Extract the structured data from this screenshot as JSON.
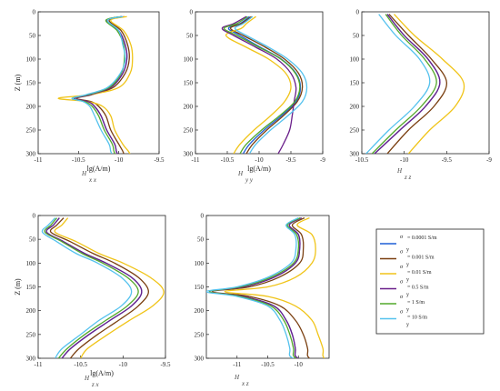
{
  "colors": {
    "s0001": "#1f5fd6",
    "s001": "#7a3f10",
    "s01": "#f0c418",
    "s05": "#6a1f8a",
    "s1": "#52a82a",
    "s10": "#55c2ee"
  },
  "legend": {
    "entries": [
      {
        "sym": "σ",
        "sub": "y",
        "text": "= 0.0001 S/m",
        "color": "#1f5fd6"
      },
      {
        "sym": "σ",
        "sub": "y",
        "text": "= 0.001 S/m",
        "color": "#7a3f10"
      },
      {
        "sym": "σ",
        "sub": "y",
        "text": "= 0.01 S/m",
        "color": "#f0c418"
      },
      {
        "sym": "σ",
        "sub": "y",
        "text": "= 0.5 S/m",
        "color": "#6a1f8a"
      },
      {
        "sym": "σ",
        "sub": "y",
        "text": "= 1 S/m",
        "color": "#52a82a"
      },
      {
        "sym": "σ",
        "sub": "y",
        "text": "= 10 S/m",
        "color": "#55c2ee"
      }
    ]
  },
  "chart_data": [
    {
      "type": "line",
      "component": "H",
      "component_sub": "x x",
      "xlabel": "lg(A/m)",
      "ylabel": "Z (m)",
      "xlim": [
        -11,
        -9.5
      ],
      "ylim": [
        0,
        300
      ],
      "xticks": [
        "-11",
        "-10.5",
        "-10",
        "-9.5"
      ],
      "yticks": [
        "0",
        "50",
        "100",
        "150",
        "200",
        "250",
        "300"
      ],
      "z": [
        10,
        18,
        40,
        70,
        100,
        130,
        160,
        175,
        183,
        190,
        200,
        220,
        250,
        280,
        295,
        305
      ],
      "series": [
        {
          "color": "#1f5fd6",
          "values": [
            -9.96,
            -10.15,
            -10.0,
            -9.92,
            -9.9,
            -9.95,
            -10.1,
            -10.35,
            -10.55,
            -10.38,
            -10.3,
            -10.22,
            -10.15,
            -10.05,
            -10.03,
            -10.0
          ]
        },
        {
          "color": "#7a3f10",
          "values": [
            -9.93,
            -10.12,
            -9.97,
            -9.89,
            -9.87,
            -9.92,
            -10.07,
            -10.33,
            -10.52,
            -10.34,
            -10.25,
            -10.16,
            -10.1,
            -10.0,
            -9.95,
            -9.93
          ]
        },
        {
          "color": "#f0c418",
          "values": [
            -9.9,
            -10.1,
            -9.94,
            -9.85,
            -9.83,
            -9.86,
            -10.0,
            -10.35,
            -10.75,
            -10.38,
            -10.2,
            -10.1,
            -10.05,
            -9.95,
            -9.88,
            -9.85
          ]
        },
        {
          "color": "#6a1f8a",
          "values": [
            -9.96,
            -10.15,
            -10.0,
            -9.92,
            -9.9,
            -9.95,
            -10.1,
            -10.35,
            -10.55,
            -10.38,
            -10.3,
            -10.22,
            -10.15,
            -10.05,
            -10.03,
            -10.0
          ]
        },
        {
          "color": "#52a82a",
          "values": [
            -9.97,
            -10.16,
            -10.02,
            -9.94,
            -9.93,
            -9.97,
            -10.12,
            -10.38,
            -10.58,
            -10.42,
            -10.33,
            -10.25,
            -10.18,
            -10.08,
            -10.06,
            -10.03
          ]
        },
        {
          "color": "#55c2ee",
          "values": [
            -9.95,
            -10.14,
            -10.0,
            -9.95,
            -9.92,
            -9.98,
            -10.14,
            -10.4,
            -10.58,
            -10.44,
            -10.36,
            -10.3,
            -10.22,
            -10.12,
            -10.1,
            -10.07
          ]
        }
      ]
    },
    {
      "type": "line",
      "component": "H",
      "component_sub": "y y",
      "xlabel": "lg(A/m)",
      "ylabel": "",
      "xlim": [
        -11,
        -9
      ],
      "ylim": [
        0,
        300
      ],
      "xticks": [
        "-11",
        "-10.5",
        "-10",
        "-9.5",
        "-9"
      ],
      "yticks": [
        "0",
        "50",
        "100",
        "150",
        "200",
        "250",
        "300"
      ],
      "z": [
        10,
        25,
        35,
        50,
        75,
        100,
        130,
        160,
        190,
        220,
        250,
        280,
        300
      ],
      "series": [
        {
          "color": "#1f5fd6",
          "values": [
            -10.15,
            -10.3,
            -10.48,
            -10.3,
            -9.98,
            -9.65,
            -9.42,
            -9.35,
            -9.42,
            -9.65,
            -9.92,
            -10.15,
            -10.25
          ]
        },
        {
          "color": "#7a3f10",
          "values": [
            -10.12,
            -10.28,
            -10.45,
            -10.25,
            -9.9,
            -9.6,
            -9.38,
            -9.32,
            -9.4,
            -9.62,
            -9.88,
            -10.1,
            -10.2
          ]
        },
        {
          "color": "#f0c418",
          "values": [
            -10.05,
            -10.2,
            -10.28,
            -10.52,
            -10.2,
            -9.85,
            -9.58,
            -9.5,
            -9.6,
            -9.82,
            -10.08,
            -10.3,
            -10.4
          ]
        },
        {
          "color": "#6a1f8a",
          "values": [
            -10.2,
            -10.4,
            -10.58,
            -10.4,
            -10.05,
            -9.72,
            -9.5,
            -9.42,
            -9.45,
            -9.48,
            -9.52,
            -9.62,
            -9.7
          ]
        },
        {
          "color": "#52a82a",
          "values": [
            -10.18,
            -10.35,
            -10.55,
            -10.35,
            -10.0,
            -9.66,
            -9.43,
            -9.36,
            -9.44,
            -9.68,
            -9.96,
            -10.2,
            -10.3
          ]
        },
        {
          "color": "#55c2ee",
          "values": [
            -10.1,
            -10.25,
            -10.38,
            -10.2,
            -9.85,
            -9.55,
            -9.32,
            -9.25,
            -9.32,
            -9.55,
            -9.82,
            -10.05,
            -10.15
          ]
        }
      ]
    },
    {
      "type": "line",
      "component": "H",
      "component_sub": "z z",
      "xlabel": "",
      "ylabel": "",
      "xlim": [
        -10.5,
        -9
      ],
      "ylim": [
        0,
        300
      ],
      "xticks": [
        "-10.5",
        "-10",
        "-9.5",
        "-9"
      ],
      "yticks": [
        "0",
        "50",
        "100",
        "150",
        "200",
        "250",
        "300"
      ],
      "z": [
        5,
        50,
        100,
        150,
        200,
        250,
        300
      ],
      "series": [
        {
          "color": "#1f5fd6",
          "values": [
            -10.2,
            -10.0,
            -9.72,
            -9.58,
            -9.75,
            -10.05,
            -10.35
          ]
        },
        {
          "color": "#7a3f10",
          "values": [
            -10.18,
            -9.95,
            -9.68,
            -9.5,
            -9.65,
            -9.95,
            -10.2
          ]
        },
        {
          "color": "#f0c418",
          "values": [
            -10.12,
            -9.88,
            -9.55,
            -9.3,
            -9.4,
            -9.7,
            -9.95
          ]
        },
        {
          "color": "#6a1f8a",
          "values": [
            -10.2,
            -10.0,
            -9.72,
            -9.58,
            -9.75,
            -10.05,
            -10.35
          ]
        },
        {
          "color": "#52a82a",
          "values": [
            -10.22,
            -10.03,
            -9.76,
            -9.62,
            -9.8,
            -10.1,
            -10.38
          ]
        },
        {
          "color": "#55c2ee",
          "values": [
            -10.3,
            -10.1,
            -9.82,
            -9.7,
            -9.88,
            -10.18,
            -10.45
          ]
        }
      ]
    },
    {
      "type": "line",
      "component": "H",
      "component_sub": "z x",
      "xlabel": "lg(A/m)",
      "ylabel": "Z (m)",
      "xlim": [
        -11,
        -9.5
      ],
      "ylim": [
        0,
        300
      ],
      "xticks": [
        "-11",
        "-10.5",
        "-10",
        "-9.5"
      ],
      "yticks": [
        "0",
        "50",
        "100",
        "150",
        "200",
        "250",
        "300"
      ],
      "z": [
        5,
        20,
        35,
        55,
        80,
        100,
        130,
        160,
        190,
        220,
        250,
        280,
        300
      ],
      "series": [
        {
          "color": "#1f5fd6",
          "values": [
            -10.75,
            -10.82,
            -10.9,
            -10.7,
            -10.45,
            -10.2,
            -9.9,
            -9.78,
            -9.9,
            -10.15,
            -10.4,
            -10.62,
            -10.72
          ]
        },
        {
          "color": "#7a3f10",
          "values": [
            -10.7,
            -10.78,
            -10.85,
            -10.62,
            -10.35,
            -10.1,
            -9.82,
            -9.7,
            -9.82,
            -10.05,
            -10.3,
            -10.52,
            -10.62
          ]
        },
        {
          "color": "#f0c418",
          "values": [
            -10.65,
            -10.72,
            -10.8,
            -10.55,
            -10.28,
            -10.0,
            -9.68,
            -9.52,
            -9.65,
            -9.92,
            -10.18,
            -10.42,
            -10.5
          ]
        },
        {
          "color": "#6a1f8a",
          "values": [
            -10.75,
            -10.82,
            -10.9,
            -10.7,
            -10.45,
            -10.2,
            -9.9,
            -9.78,
            -9.9,
            -10.15,
            -10.4,
            -10.62,
            -10.72
          ]
        },
        {
          "color": "#52a82a",
          "values": [
            -10.78,
            -10.85,
            -10.92,
            -10.72,
            -10.48,
            -10.24,
            -9.95,
            -9.82,
            -9.95,
            -10.2,
            -10.45,
            -10.66,
            -10.76
          ]
        },
        {
          "color": "#55c2ee",
          "values": [
            -10.8,
            -10.88,
            -10.95,
            -10.78,
            -10.55,
            -10.3,
            -10.02,
            -9.9,
            -10.02,
            -10.28,
            -10.5,
            -10.72,
            -10.8
          ]
        }
      ]
    },
    {
      "type": "line",
      "component": "H",
      "component_sub": "x z",
      "xlabel": "",
      "ylabel": "",
      "xlim": [
        -11.5,
        -9.5
      ],
      "ylim": [
        0,
        300
      ],
      "xticks": [
        "-11",
        "-10.5",
        "-10"
      ],
      "yticks": [
        "0",
        "50",
        "100",
        "150",
        "200",
        "250",
        "300"
      ],
      "z": [
        5,
        20,
        40,
        70,
        100,
        130,
        150,
        160,
        170,
        190,
        220,
        250,
        280,
        295,
        305
      ],
      "series": [
        {
          "color": "#1f5fd6",
          "values": [
            -9.95,
            -10.15,
            -10.0,
            -9.98,
            -10.05,
            -10.4,
            -10.9,
            -11.45,
            -10.9,
            -10.4,
            -10.2,
            -10.1,
            -10.05,
            -10.05,
            -9.95
          ]
        },
        {
          "color": "#7a3f10",
          "values": [
            -9.9,
            -10.1,
            -9.95,
            -9.92,
            -9.98,
            -10.32,
            -10.8,
            -11.4,
            -10.8,
            -10.3,
            -10.05,
            -9.92,
            -9.85,
            -9.85,
            -9.78
          ]
        },
        {
          "color": "#f0c418",
          "values": [
            -9.82,
            -10.02,
            -9.78,
            -9.72,
            -9.78,
            -10.05,
            -10.5,
            -11.2,
            -10.5,
            -10.05,
            -9.78,
            -9.68,
            -9.6,
            -9.6,
            -9.55
          ]
        },
        {
          "color": "#6a1f8a",
          "values": [
            -9.95,
            -10.15,
            -10.0,
            -9.98,
            -10.05,
            -10.4,
            -10.9,
            -11.45,
            -10.9,
            -10.4,
            -10.2,
            -10.1,
            -10.05,
            -10.05,
            -9.95
          ]
        },
        {
          "color": "#52a82a",
          "values": [
            -9.97,
            -10.18,
            -10.03,
            -10.0,
            -10.08,
            -10.45,
            -10.95,
            -11.45,
            -10.95,
            -10.45,
            -10.24,
            -10.14,
            -10.08,
            -10.08,
            -9.98
          ]
        },
        {
          "color": "#55c2ee",
          "values": [
            -10.0,
            -10.2,
            -10.06,
            -10.04,
            -10.12,
            -10.5,
            -11.0,
            -11.5,
            -11.0,
            -10.5,
            -10.3,
            -10.2,
            -10.14,
            -10.14,
            -10.02
          ]
        }
      ]
    }
  ]
}
